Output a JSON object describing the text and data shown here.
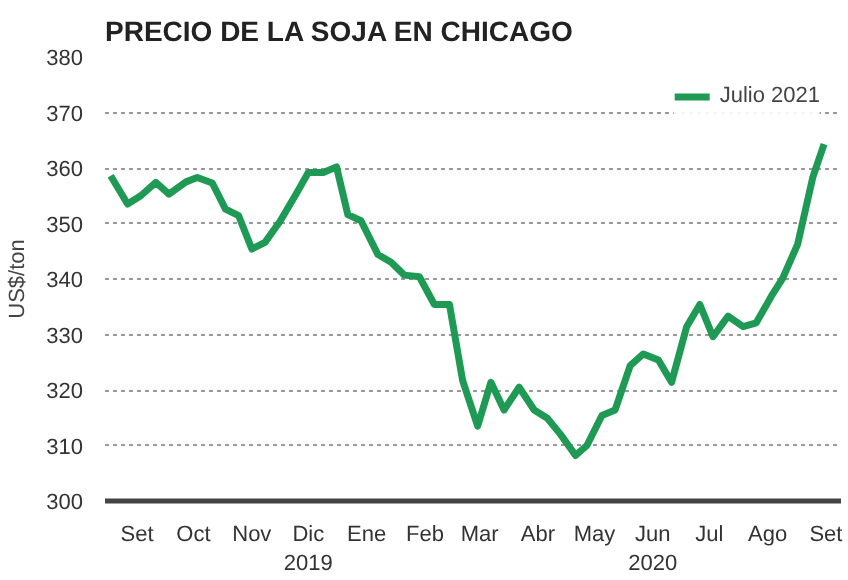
{
  "chart_data": {
    "type": "line",
    "title": "PRECIO DE LA SOJA EN CHICAGO",
    "ylabel": "US$/ton",
    "x": [
      "2019-09-01",
      "2019-09-10",
      "2019-09-17",
      "2019-09-25",
      "2019-10-02",
      "2019-10-11",
      "2019-10-17",
      "2019-10-25",
      "2019-11-01",
      "2019-11-08",
      "2019-11-15",
      "2019-11-22",
      "2019-11-30",
      "2019-12-09",
      "2019-12-15",
      "2019-12-23",
      "2019-12-30",
      "2020-01-05",
      "2020-01-12",
      "2020-01-21",
      "2020-01-28",
      "2020-02-04",
      "2020-02-12",
      "2020-02-20",
      "2020-02-28",
      "2020-03-06",
      "2020-03-14",
      "2020-03-21",
      "2020-03-28",
      "2020-04-05",
      "2020-04-13",
      "2020-04-20",
      "2020-04-27",
      "2020-05-05",
      "2020-05-11",
      "2020-05-19",
      "2020-05-26",
      "2020-06-03",
      "2020-06-10",
      "2020-06-18",
      "2020-06-25",
      "2020-07-03",
      "2020-07-10",
      "2020-07-17",
      "2020-07-25",
      "2020-08-02",
      "2020-08-09",
      "2020-08-17",
      "2020-08-23",
      "2020-08-31",
      "2020-09-08",
      "2020-09-14"
    ],
    "series": [
      {
        "name": "Julio 2021",
        "color": "#1e9a55",
        "values": [
          358.6,
          353.5,
          355.0,
          357.4,
          355.3,
          357.5,
          358.3,
          357.3,
          352.6,
          351.4,
          345.4,
          346.6,
          350.4,
          355.6,
          359.2,
          359.2,
          360.2,
          351.6,
          350.5,
          344.4,
          343.0,
          340.7,
          340.4,
          335.4,
          335.4,
          321.7,
          313.5,
          321.4,
          316.4,
          320.5,
          316.4,
          314.9,
          312.0,
          308.2,
          310.0,
          315.4,
          316.4,
          324.4,
          326.5,
          325.4,
          321.4,
          331.4,
          335.4,
          329.6,
          333.3,
          331.4,
          332.1,
          336.9,
          340.1,
          346.3,
          358.3,
          364.3
        ]
      }
    ],
    "xlim": [
      "2019-08-29",
      "2020-09-23"
    ],
    "xticks": [
      {
        "value": "2019-09-15",
        "label": "Set"
      },
      {
        "value": "2019-10-15",
        "label": "Oct"
      },
      {
        "value": "2019-11-15",
        "label": "Nov"
      },
      {
        "value": "2019-12-15",
        "label": "Dic\n2019"
      },
      {
        "value": "2020-01-15",
        "label": "Ene"
      },
      {
        "value": "2020-02-15",
        "label": "Feb"
      },
      {
        "value": "2020-03-15",
        "label": "Mar"
      },
      {
        "value": "2020-04-15",
        "label": "Abr"
      },
      {
        "value": "2020-05-15",
        "label": "May"
      },
      {
        "value": "2020-06-15",
        "label": "Jun\n2020"
      },
      {
        "value": "2020-07-15",
        "label": "Jul"
      },
      {
        "value": "2020-08-15",
        "label": "Ago"
      },
      {
        "value": "2020-09-15",
        "label": "Set"
      }
    ],
    "ylim": [
      300,
      380
    ],
    "yticks": [
      300,
      310,
      320,
      330,
      340,
      350,
      360,
      370,
      380
    ],
    "grid": "y",
    "legend": "top right",
    "marker": "none",
    "line_style": "solid"
  }
}
